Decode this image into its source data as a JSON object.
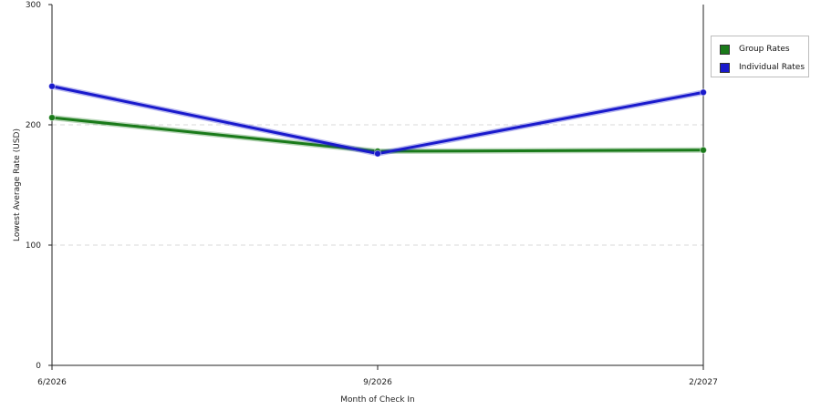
{
  "chart_data": {
    "type": "line",
    "title": "",
    "xlabel": "Month of Check In",
    "ylabel": "Lowest Average Rate (USD)",
    "categories": [
      "6/2026",
      "9/2026",
      "2/2027"
    ],
    "ylim": [
      0,
      300
    ],
    "yticks": [
      0,
      100,
      200,
      300
    ],
    "grid": true,
    "legend_position": "right",
    "series": [
      {
        "name": "Group Rates",
        "color": "#1a7a1a",
        "values": [
          206,
          178,
          179
        ]
      },
      {
        "name": "Individual Rates",
        "color": "#1a1acc",
        "values": [
          232,
          176,
          227
        ]
      }
    ]
  }
}
